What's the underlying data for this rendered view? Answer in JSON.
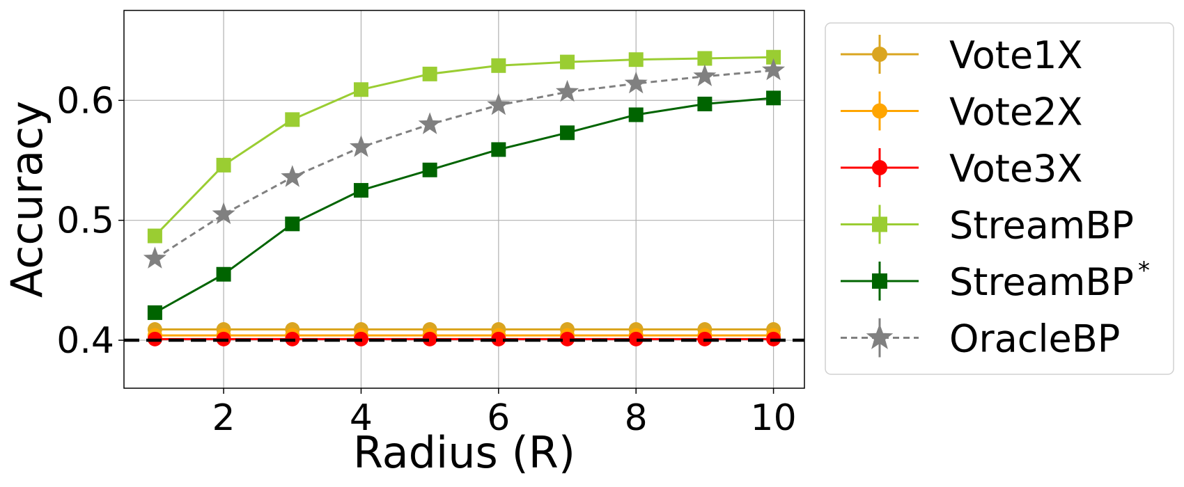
{
  "chart_data": {
    "type": "line",
    "xlabel": "Radius (R)",
    "ylabel": "Accuracy",
    "xlim": [
      0.55,
      10.45
    ],
    "ylim": [
      0.36,
      0.675
    ],
    "xticks": [
      2,
      4,
      6,
      8,
      10
    ],
    "xtick_labels": [
      "2",
      "4",
      "6",
      "8",
      "10"
    ],
    "yticks": [
      0.4,
      0.5,
      0.6
    ],
    "ytick_labels": [
      "0.4",
      "0.5",
      "0.6"
    ],
    "grid": true,
    "legend_position": "outside-right",
    "baseline": {
      "y": 0.4,
      "color": "#000000",
      "style": "dashed"
    },
    "x": [
      1,
      2,
      3,
      4,
      5,
      6,
      7,
      8,
      9,
      10
    ],
    "series": [
      {
        "name": "Vote1X",
        "color": "#DAA520",
        "marker": "circle",
        "line": "solid",
        "values": [
          0.409,
          0.409,
          0.409,
          0.409,
          0.409,
          0.409,
          0.409,
          0.409,
          0.409,
          0.409
        ]
      },
      {
        "name": "Vote2X",
        "color": "#FFA500",
        "marker": "circle",
        "line": "solid",
        "values": [
          0.404,
          0.404,
          0.404,
          0.404,
          0.404,
          0.404,
          0.404,
          0.404,
          0.404,
          0.404
        ]
      },
      {
        "name": "Vote3X",
        "color": "#FF0000",
        "marker": "circle",
        "line": "solid",
        "values": [
          0.401,
          0.401,
          0.401,
          0.401,
          0.401,
          0.401,
          0.401,
          0.401,
          0.401,
          0.401
        ]
      },
      {
        "name": "StreamBP",
        "color": "#9ACD32",
        "marker": "square",
        "line": "solid",
        "values": [
          0.487,
          0.546,
          0.584,
          0.609,
          0.622,
          0.629,
          0.632,
          0.634,
          0.635,
          0.636
        ]
      },
      {
        "name": "StreamBP",
        "sup": "*",
        "color": "#006400",
        "marker": "square",
        "line": "solid",
        "values": [
          0.423,
          0.455,
          0.497,
          0.525,
          0.542,
          0.559,
          0.573,
          0.588,
          0.597,
          0.602
        ]
      },
      {
        "name": "OracleBP",
        "color": "#808080",
        "marker": "star",
        "line": "dashed",
        "values": [
          0.468,
          0.505,
          0.536,
          0.561,
          0.58,
          0.596,
          0.607,
          0.614,
          0.62,
          0.625
        ]
      }
    ]
  }
}
